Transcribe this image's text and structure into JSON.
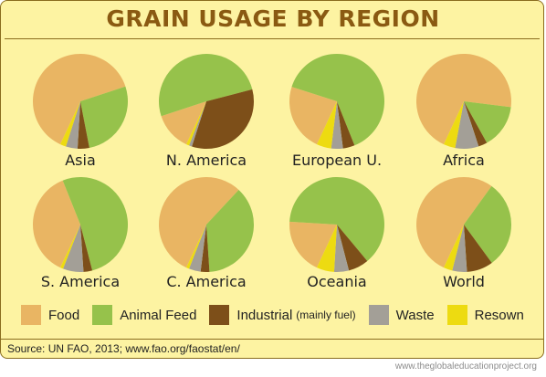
{
  "title": "GRAIN USAGE BY REGION",
  "source": "Source: UN FAO, 2013; www.fao.org/faostat/en/",
  "website": "www.theglobaleducationproject.org",
  "colors": {
    "Food": "#e9b563",
    "Animal Feed": "#96c24b",
    "Industrial": "#7d4f19",
    "Waste": "#a39f97",
    "Resown": "#eddb11",
    "frame": "#8a6d1f",
    "background": "#fdf3a2",
    "title": "#8a5a12"
  },
  "chart_data": {
    "type": "pie",
    "title": "GRAIN USAGE BY REGION",
    "legend": [
      {
        "name": "Food",
        "note": ""
      },
      {
        "name": "Animal Feed",
        "note": ""
      },
      {
        "name": "Industrial",
        "note": "(mainly fuel)"
      },
      {
        "name": "Waste",
        "note": ""
      },
      {
        "name": "Resown",
        "note": ""
      }
    ],
    "legend_placement": "bottom",
    "categories": [
      "Food",
      "Animal Feed",
      "Industrial",
      "Waste",
      "Resown"
    ],
    "pies": [
      {
        "region": "Asia",
        "values": [
          63,
          27,
          4,
          4,
          2
        ]
      },
      {
        "region": "N. America",
        "values": [
          13,
          51,
          34,
          1,
          1
        ]
      },
      {
        "region": "European U.",
        "values": [
          23,
          64,
          4,
          4,
          5
        ]
      },
      {
        "region": "Africa",
        "values": [
          70,
          15,
          3,
          8,
          4
        ]
      },
      {
        "region": "S. America",
        "values": [
          37,
          52,
          3,
          7,
          1
        ]
      },
      {
        "region": "C. America",
        "values": [
          55,
          37,
          3,
          4,
          1
        ]
      },
      {
        "region": "Oceania",
        "values": [
          19,
          63,
          7,
          5,
          6
        ]
      },
      {
        "region": "World",
        "values": [
          53,
          30,
          9,
          5,
          3
        ]
      }
    ]
  }
}
